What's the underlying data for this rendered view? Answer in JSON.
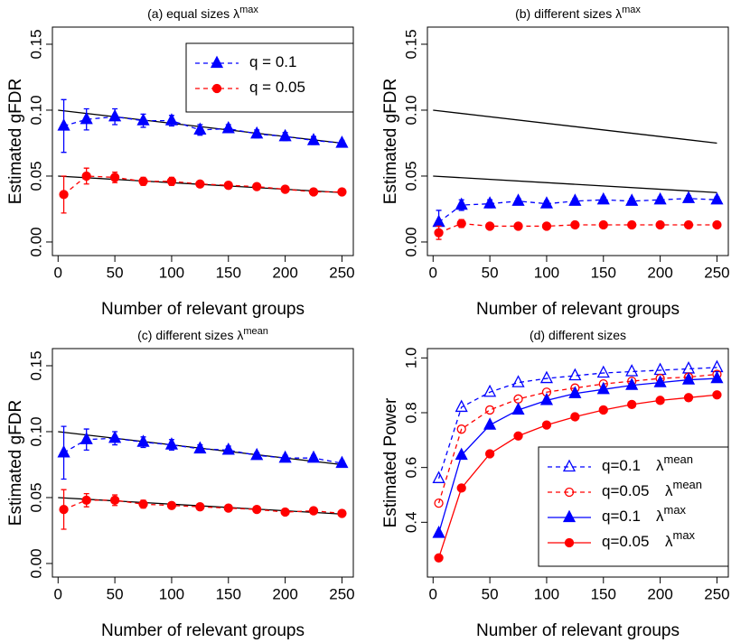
{
  "chart_data": [
    {
      "type": "line",
      "title": "(a) equal sizes λ",
      "title_superscript": "max",
      "x_label": "Number of relevant groups",
      "y_label": "Estimated gFDR",
      "xlim": [
        -5,
        260
      ],
      "ylim": [
        -0.0103,
        0.163
      ],
      "xticks": [
        0,
        50,
        100,
        150,
        200,
        250
      ],
      "yticks": [
        {
          "value": 0,
          "label": "0.00"
        },
        0.05,
        {
          "value": 0.1,
          "label": "0.10"
        },
        0.15
      ],
      "legend": "topright",
      "x": [
        5,
        25,
        50,
        75,
        100,
        125,
        150,
        175,
        200,
        225,
        250
      ],
      "series": [
        {
          "name": "q = 0.1",
          "color": "#0000ff",
          "marker": "triangle",
          "filled": true,
          "dash": true,
          "values": [
            0.088,
            0.093,
            0.095,
            0.092,
            0.092,
            0.085,
            0.086,
            0.082,
            0.08,
            0.077,
            0.075
          ],
          "errors": [
            0.02,
            0.008,
            0.006,
            0.005,
            0.004,
            0.004,
            0.003,
            0.003,
            0.003,
            0.003,
            0.002
          ]
        },
        {
          "name": "q = 0.05",
          "color": "#ff0000",
          "marker": "circle",
          "filled": true,
          "dash": true,
          "values": [
            0.036,
            0.05,
            0.049,
            0.046,
            0.046,
            0.044,
            0.043,
            0.042,
            0.04,
            0.038,
            0.038
          ],
          "errors": [
            0.014,
            0.006,
            0.004,
            0.003,
            0.003,
            0.002,
            0.002,
            0.002,
            0.002,
            0.002,
            0.002
          ]
        }
      ],
      "reference_lines": [
        {
          "x": [
            0,
            250
          ],
          "values": [
            0.1,
            0.075
          ],
          "color": "#000000"
        },
        {
          "x": [
            0,
            250
          ],
          "values": [
            0.05,
            0.0375
          ],
          "color": "#000000"
        }
      ]
    },
    {
      "type": "line",
      "title": "(b) different sizes λ",
      "title_superscript": "max",
      "x_label": "Number of relevant groups",
      "y_label": "Estimated gFDR",
      "xlim": [
        -5,
        260
      ],
      "ylim": [
        -0.0103,
        0.163
      ],
      "xticks": [
        0,
        50,
        100,
        150,
        200,
        250
      ],
      "yticks": [
        {
          "value": 0,
          "label": "0.00"
        },
        0.05,
        {
          "value": 0.1,
          "label": "0.10"
        },
        0.15
      ],
      "x": [
        5,
        25,
        50,
        75,
        100,
        125,
        150,
        175,
        200,
        225,
        250
      ],
      "series": [
        {
          "color": "#0000ff",
          "marker": "triangle",
          "filled": true,
          "dash": true,
          "values": [
            0.015,
            0.028,
            0.029,
            0.031,
            0.029,
            0.031,
            0.032,
            0.031,
            0.032,
            0.033,
            0.032
          ],
          "errors": [
            0.009,
            0.004,
            0.003,
            0.002,
            0.002,
            0.002,
            0.002,
            0.002,
            0.002,
            0.002,
            0.002
          ]
        },
        {
          "color": "#ff0000",
          "marker": "circle",
          "filled": true,
          "dash": true,
          "values": [
            0.007,
            0.014,
            0.012,
            0.012,
            0.012,
            0.013,
            0.013,
            0.013,
            0.013,
            0.013,
            0.013
          ],
          "errors": [
            0.005,
            0.003,
            0.001,
            0.001,
            0.001,
            0.001,
            0.001,
            0.001,
            0.001,
            0.001,
            0.001
          ]
        }
      ],
      "reference_lines": [
        {
          "x": [
            0,
            250
          ],
          "values": [
            0.1,
            0.075
          ],
          "color": "#000000"
        },
        {
          "x": [
            0,
            250
          ],
          "values": [
            0.05,
            0.0375
          ],
          "color": "#000000"
        }
      ]
    },
    {
      "type": "line",
      "title": "(c) different sizes λ",
      "title_superscript": "mean",
      "x_label": "Number of relevant groups",
      "y_label": "Estimated gFDR",
      "xlim": [
        -5,
        260
      ],
      "ylim": [
        -0.0103,
        0.163
      ],
      "xticks": [
        0,
        50,
        100,
        150,
        200,
        250
      ],
      "yticks": [
        {
          "value": 0,
          "label": "0.00"
        },
        0.05,
        {
          "value": 0.1,
          "label": "0.10"
        },
        0.15
      ],
      "x": [
        5,
        25,
        50,
        75,
        100,
        125,
        150,
        175,
        200,
        225,
        250
      ],
      "series": [
        {
          "color": "#0000ff",
          "marker": "triangle",
          "filled": true,
          "dash": true,
          "values": [
            0.084,
            0.094,
            0.095,
            0.092,
            0.09,
            0.087,
            0.086,
            0.082,
            0.08,
            0.08,
            0.076
          ],
          "errors": [
            0.02,
            0.008,
            0.005,
            0.004,
            0.004,
            0.003,
            0.003,
            0.002,
            0.002,
            0.002,
            0.002
          ]
        },
        {
          "color": "#ff0000",
          "marker": "circle",
          "filled": true,
          "dash": true,
          "values": [
            0.041,
            0.048,
            0.048,
            0.045,
            0.044,
            0.043,
            0.042,
            0.041,
            0.039,
            0.04,
            0.038
          ],
          "errors": [
            0.015,
            0.005,
            0.004,
            0.003,
            0.002,
            0.002,
            0.002,
            0.002,
            0.002,
            0.002,
            0.002
          ]
        }
      ],
      "reference_lines": [
        {
          "x": [
            0,
            250
          ],
          "values": [
            0.1,
            0.075
          ],
          "color": "#000000"
        },
        {
          "x": [
            0,
            250
          ],
          "values": [
            0.05,
            0.0375
          ],
          "color": "#000000"
        }
      ]
    },
    {
      "type": "line",
      "title": "(d) different sizes",
      "x_label": "Number of relevant groups",
      "y_label": "Estimated Power",
      "xlim": [
        -5,
        260
      ],
      "ylim": [
        0.2,
        1.034
      ],
      "xticks": [
        0,
        50,
        100,
        150,
        200,
        250
      ],
      "yticks": [
        0.4,
        0.6,
        0.8,
        {
          "value": 1,
          "label": "1.0"
        }
      ],
      "legend": "bottomright",
      "x": [
        5,
        25,
        50,
        75,
        100,
        125,
        150,
        175,
        200,
        225,
        250
      ],
      "series": [
        {
          "name": "q=0.1",
          "lambda": "λ",
          "superscript": "mean",
          "color": "#0000ff",
          "marker": "triangle",
          "filled": false,
          "dash": true,
          "values": [
            0.56,
            0.82,
            0.875,
            0.91,
            0.925,
            0.935,
            0.945,
            0.95,
            0.955,
            0.96,
            0.965
          ]
        },
        {
          "name": "q=0.05",
          "lambda": "λ",
          "superscript": "mean",
          "color": "#ff0000",
          "marker": "circle",
          "filled": false,
          "dash": true,
          "values": [
            0.47,
            0.74,
            0.81,
            0.85,
            0.875,
            0.89,
            0.905,
            0.915,
            0.925,
            0.93,
            0.94
          ]
        },
        {
          "name": "q=0.1",
          "lambda": "λ",
          "superscript": "max",
          "color": "#0000ff",
          "marker": "triangle",
          "filled": true,
          "dash": false,
          "values": [
            0.36,
            0.645,
            0.755,
            0.81,
            0.845,
            0.87,
            0.885,
            0.9,
            0.91,
            0.92,
            0.925
          ]
        },
        {
          "name": "q=0.05",
          "lambda": "λ",
          "superscript": "max",
          "color": "#ff0000",
          "marker": "circle",
          "filled": true,
          "dash": false,
          "values": [
            0.27,
            0.525,
            0.65,
            0.715,
            0.755,
            0.785,
            0.81,
            0.83,
            0.845,
            0.855,
            0.865
          ]
        }
      ]
    }
  ]
}
